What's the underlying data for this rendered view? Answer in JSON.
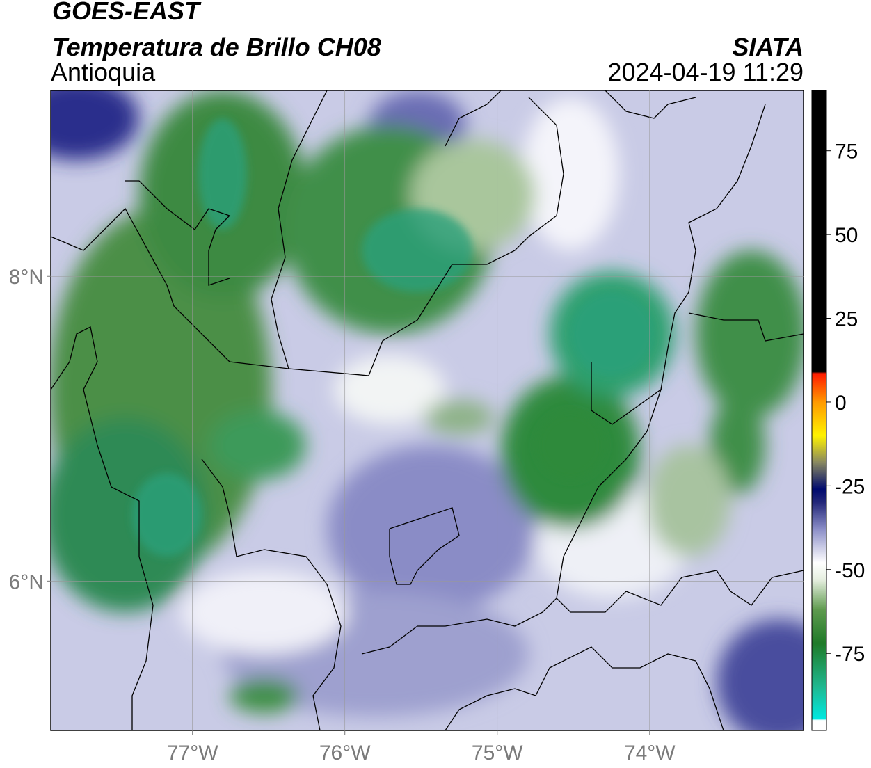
{
  "header": {
    "title": "GOES-EAST",
    "subtitle": "Temperatura de Brillo CH08",
    "region": "Antioquia",
    "source": "SIATA",
    "timestamp": "2024-04-19 11:29"
  },
  "map": {
    "xlim": [
      -77.93,
      -72.99
    ],
    "ylim": [
      5.02,
      9.22
    ],
    "xticks": [
      {
        "value": -77,
        "label": "77°W"
      },
      {
        "value": -76,
        "label": "76°W"
      },
      {
        "value": -75,
        "label": "75°W"
      },
      {
        "value": -74,
        "label": "74°W"
      }
    ],
    "yticks": [
      {
        "value": 8,
        "label": "8°N"
      },
      {
        "value": 6,
        "label": "6°N"
      }
    ],
    "grid": true,
    "colorbar": {
      "lim": [
        -98,
        93
      ],
      "ticks": [
        75,
        50,
        25,
        0,
        -25,
        -50,
        -75
      ],
      "stops": [
        {
          "value": -98,
          "color": "#ffffff"
        },
        {
          "value": -95,
          "color": "#ffffff"
        },
        {
          "value": -94.5,
          "color": "#00e8e0"
        },
        {
          "value": -85,
          "color": "#1fb890"
        },
        {
          "value": -72,
          "color": "#1f7a28"
        },
        {
          "value": -62,
          "color": "#5e9a4e"
        },
        {
          "value": -53,
          "color": "#e6efe0"
        },
        {
          "value": -48,
          "color": "#ffffff"
        },
        {
          "value": -38,
          "color": "#8c8fc8"
        },
        {
          "value": -30,
          "color": "#24287a"
        },
        {
          "value": -26,
          "color": "#000a6e"
        },
        {
          "value": -18,
          "color": "#888860"
        },
        {
          "value": -10,
          "color": "#fff200"
        },
        {
          "value": 0,
          "color": "#ff9900"
        },
        {
          "value": 8.5,
          "color": "#ff1a00"
        },
        {
          "value": 9,
          "color": "#000000"
        },
        {
          "value": 93,
          "color": "#000000"
        }
      ]
    }
  }
}
